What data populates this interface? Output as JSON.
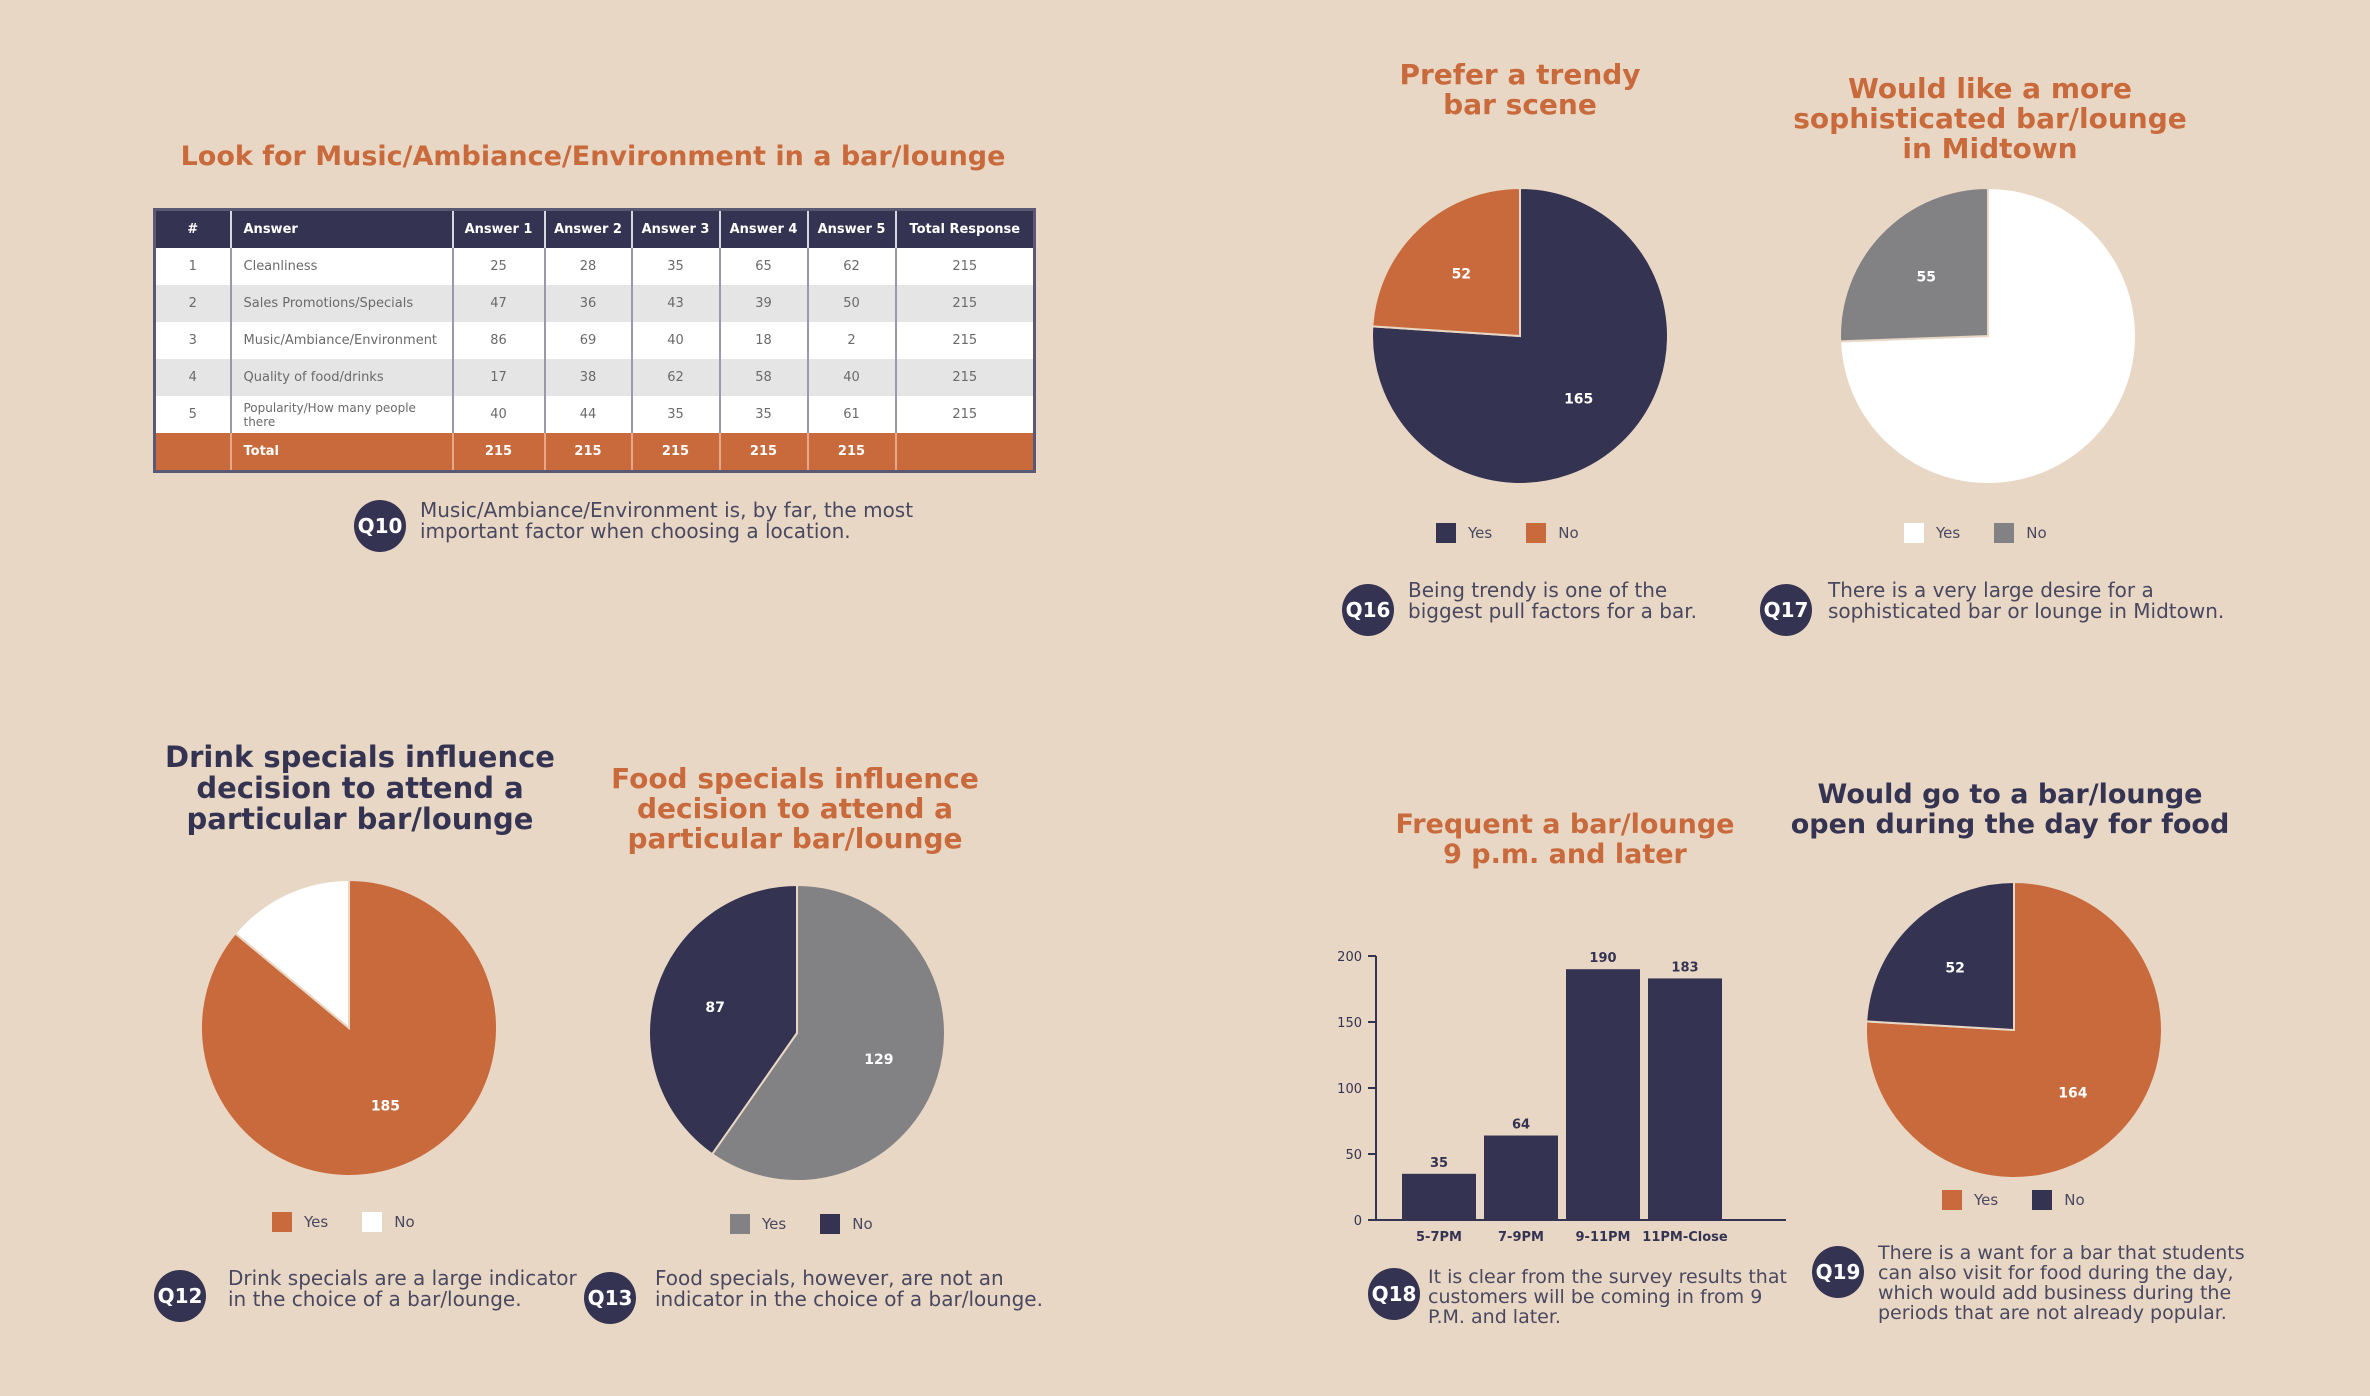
{
  "colors": {
    "navy": "#353352",
    "orange": "#c96a3c",
    "gray": "#828284",
    "white": "#ffffff"
  },
  "table_section": {
    "title": "Look for Music/Ambiance/Environment in a bar/lounge",
    "headers": [
      "#",
      "Answer",
      "Answer 1",
      "Answer 2",
      "Answer 3",
      "Answer 4",
      "Answer 5",
      "Total Response"
    ],
    "rows": [
      [
        "1",
        "Cleanliness",
        "25",
        "28",
        "35",
        "65",
        "62",
        "215"
      ],
      [
        "2",
        "Sales Promotions/Specials",
        "47",
        "36",
        "43",
        "39",
        "50",
        "215"
      ],
      [
        "3",
        "Music/Ambiance/Environment",
        "86",
        "69",
        "40",
        "18",
        "2",
        "215"
      ],
      [
        "4",
        "Quality of food/drinks",
        "17",
        "38",
        "62",
        "58",
        "40",
        "215"
      ],
      [
        "5",
        "Popularity/How many people there",
        "40",
        "44",
        "35",
        "35",
        "61",
        "215"
      ]
    ],
    "total": [
      "",
      "Total",
      "215",
      "215",
      "215",
      "215",
      "215",
      ""
    ],
    "badge": "Q10",
    "caption": "Music/Ambiance/Environment is, by far, the most important factor when choosing a location."
  },
  "chart_data": [
    {
      "id": "q16",
      "type": "pie",
      "title": "Prefer a trendy bar scene",
      "labels": [
        "Yes",
        "No"
      ],
      "values": [
        165,
        52
      ],
      "colors": [
        "#353352",
        "#c96a3c"
      ],
      "badge": "Q16",
      "caption": "Being trendy is one of the biggest pull factors for a bar."
    },
    {
      "id": "q17",
      "type": "pie",
      "title": "Would like a more sophisticated bar/lounge in Midtown",
      "labels": [
        "Yes",
        "No"
      ],
      "values": [
        160,
        55
      ],
      "value_labels": [
        "",
        "55"
      ],
      "colors": [
        "#ffffff",
        "#828284"
      ],
      "badge": "Q17",
      "caption": "There is a very large desire for a sophisticated bar or lounge in Midtown."
    },
    {
      "id": "q12",
      "type": "pie",
      "title": "Drink specials influence decision to attend a particular bar/lounge",
      "labels": [
        "Yes",
        "No"
      ],
      "values": [
        185,
        30
      ],
      "value_labels": [
        "185",
        ""
      ],
      "colors": [
        "#c96a3c",
        "#ffffff"
      ],
      "badge": "Q12",
      "caption": "Drink specials are a large indicator in the choice of a bar/lounge."
    },
    {
      "id": "q13",
      "type": "pie",
      "title": "Food specials influence decision to attend a particular bar/lounge",
      "labels": [
        "Yes",
        "No"
      ],
      "values": [
        129,
        87
      ],
      "colors": [
        "#828284",
        "#353352"
      ],
      "badge": "Q13",
      "caption": "Food specials, however, are not an indicator in the choice of a bar/lounge."
    },
    {
      "id": "q18",
      "type": "bar",
      "title": "Frequent a bar/lounge 9 p.m. and later",
      "categories": [
        "5-7PM",
        "7-9PM",
        "9-11PM",
        "11PM-Close"
      ],
      "values": [
        35,
        64,
        190,
        183
      ],
      "yticks": [
        "0",
        "50",
        "100",
        "150",
        "200"
      ],
      "ylim": [
        0,
        200
      ],
      "badge": "Q18",
      "caption": "It is clear from the survey results that customers will be coming in from 9 P.M. and later."
    },
    {
      "id": "q19",
      "type": "pie",
      "title": "Would go to a bar/lounge open during the day for food",
      "labels": [
        "Yes",
        "No"
      ],
      "values": [
        164,
        52
      ],
      "colors": [
        "#c96a3c",
        "#353352"
      ],
      "badge": "Q19",
      "caption": "There is a want for a bar that students can also visit for food during the day, which would add business during the periods that are not already popular."
    }
  ]
}
